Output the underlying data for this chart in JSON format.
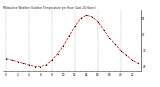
{
  "title": "Milwaukee Weather Outdoor Temperature per Hour (Last 24 Hours)",
  "hours": [
    0,
    1,
    2,
    3,
    4,
    5,
    6,
    7,
    8,
    9,
    10,
    11,
    12,
    13,
    14,
    15,
    16,
    17,
    18,
    19,
    20,
    21,
    22,
    23
  ],
  "temps": [
    32,
    31,
    30,
    29,
    28,
    27,
    27,
    28,
    31,
    35,
    40,
    46,
    52,
    57,
    59,
    58,
    55,
    50,
    45,
    41,
    37,
    34,
    31,
    29
  ],
  "line_color": "#cc0000",
  "marker_color": "#000000",
  "bg_color": "#ffffff",
  "grid_color": "#888888",
  "ylim_min": 24,
  "ylim_max": 62,
  "yticks": [
    27,
    37,
    47,
    57
  ],
  "xtick_step": 1,
  "title_fontsize": 2.0,
  "tick_fontsize": 2.0,
  "line_width": 0.5,
  "marker_size": 1.2
}
